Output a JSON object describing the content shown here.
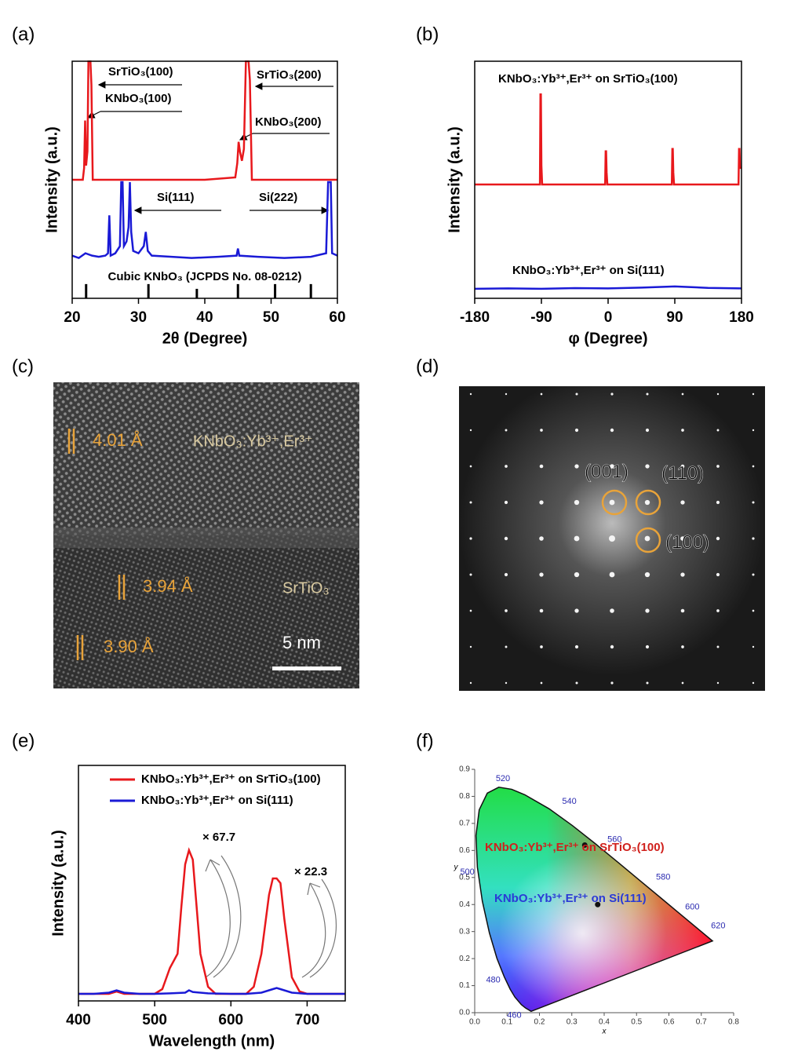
{
  "chart_data": [
    {
      "type": "line",
      "panel_label": "(a)",
      "x_label": "2θ (Degree)",
      "y_label": "Intensity (a.u.)",
      "xlim": [
        20,
        60
      ],
      "xticks": [
        20,
        30,
        40,
        50,
        60
      ],
      "ylim": [
        0,
        100
      ],
      "series": [
        {
          "color": "#e8181c",
          "x": [
            20,
            21.6,
            21.8,
            21.95,
            22.1,
            22.3,
            22.45,
            22.6,
            22.75,
            22.9,
            23.1,
            30,
            40,
            44.6,
            44.9,
            45.1,
            45.3,
            45.6,
            45.9,
            46.2,
            46.4,
            46.6,
            46.8,
            47.1,
            50,
            60
          ],
          "values": [
            50,
            50,
            55,
            75,
            56,
            62,
            100,
            100,
            100,
            90,
            50,
            50,
            50,
            51,
            57,
            66,
            62,
            58,
            63,
            100,
            100,
            100,
            92,
            50,
            50,
            50
          ]
        },
        {
          "color": "#1a1ad6",
          "x": [
            20,
            21,
            22,
            23,
            24,
            25,
            25.4,
            25.6,
            25.8,
            26.5,
            27.2,
            27.4,
            27.6,
            27.8,
            28.2,
            28.5,
            28.7,
            28.9,
            29.2,
            30,
            30.8,
            31.1,
            31.4,
            32,
            35,
            38,
            42,
            44.8,
            45,
            45.2,
            48,
            52,
            56,
            58.3,
            58.6,
            58.8,
            59,
            59.2,
            60
          ],
          "values": [
            18,
            17,
            19,
            18,
            17.5,
            18,
            19,
            35,
            18,
            19,
            22,
            49,
            49,
            22,
            24,
            30,
            49,
            28,
            20,
            19,
            22,
            28,
            20,
            18,
            17.5,
            17,
            17.5,
            18,
            21,
            18,
            17.5,
            17,
            17.5,
            19,
            49,
            49,
            49,
            19,
            18
          ]
        }
      ],
      "reference_peaks": {
        "label": "Cubic KNbO₃ (JCPDS No. 08-0212)",
        "x": [
          22.1,
          31.5,
          38.8,
          45.0,
          50.6,
          56.0
        ],
        "values": [
          6,
          6,
          4,
          6,
          6,
          6
        ]
      },
      "annotations": [
        "SrTiO₃(100)",
        "KNbO₃(100)",
        "SrTiO₃(200)",
        "KNbO₃(200)",
        "Si(111)",
        "Si(222)"
      ]
    },
    {
      "type": "line",
      "panel_label": "(b)",
      "x_label": "φ (Degree)",
      "y_label": "Intensity (a.u.)",
      "xlim": [
        -180,
        180
      ],
      "xticks": [
        -180,
        -90,
        0,
        90,
        180
      ],
      "ylim": [
        0,
        100
      ],
      "series": [
        {
          "name": "KNbO₃:Yb³⁺,Er³⁺ on SrTiO₃(100)",
          "color": "#e8181c",
          "x": [
            -180,
            -92,
            -91.3,
            -90.7,
            -90,
            -89,
            -4,
            -3.3,
            -2.7,
            -2,
            -1,
            86,
            86.7,
            87.3,
            88,
            89,
            176,
            176.7,
            177.3,
            178,
            180
          ],
          "values": [
            48,
            48,
            86,
            86,
            56,
            48,
            48,
            62,
            62,
            53,
            48,
            48,
            63,
            63,
            53,
            48,
            48,
            63,
            63,
            55,
            55
          ]
        },
        {
          "name": "KNbO₃:Yb³⁺,Er³⁺ on Si(111)",
          "color": "#1a1ad6",
          "x": [
            -180,
            -135,
            -90,
            -45,
            0,
            45,
            90,
            135,
            180
          ],
          "values": [
            4,
            4.2,
            4,
            4.3,
            4.2,
            4.5,
            5,
            4.4,
            4.2
          ]
        }
      ]
    },
    {
      "type": "line",
      "panel_label": "(e)",
      "x_label": "Wavelength (nm)",
      "y_label": "Intensity (a.u.)",
      "xlim": [
        400,
        750
      ],
      "xticks": [
        400,
        500,
        600,
        700
      ],
      "ylim": [
        0,
        100
      ],
      "legend": "top",
      "series": [
        {
          "name": "KNbO₃:Yb³⁺,Er³⁺ on SrTiO₃(100)",
          "color": "#e8181c",
          "x": [
            400,
            420,
            440,
            450,
            460,
            480,
            500,
            510,
            520,
            530,
            535,
            540,
            545,
            550,
            555,
            560,
            570,
            580,
            600,
            620,
            630,
            640,
            650,
            655,
            660,
            665,
            670,
            680,
            690,
            700,
            720,
            750
          ],
          "values": [
            3,
            3,
            3,
            4,
            3,
            3,
            3,
            5,
            14,
            20,
            40,
            58,
            64,
            60,
            40,
            20,
            6,
            3,
            3,
            3,
            6,
            20,
            45,
            52,
            52,
            50,
            35,
            10,
            4,
            3,
            3,
            3
          ]
        },
        {
          "name": "KNbO₃:Yb³⁺,Er³⁺ on Si(111)",
          "color": "#1a1ad6",
          "x": [
            400,
            420,
            440,
            450,
            460,
            480,
            500,
            520,
            540,
            545,
            550,
            570,
            600,
            620,
            640,
            655,
            660,
            665,
            680,
            700,
            720,
            750
          ],
          "values": [
            3,
            3,
            3.5,
            4.5,
            3.5,
            3,
            3,
            3.2,
            3.5,
            4.5,
            3.8,
            3.2,
            3,
            3,
            3.5,
            5,
            5.5,
            5,
            3.5,
            3,
            3,
            3
          ]
        }
      ],
      "annotations": [
        "× 67.7",
        "× 22.3"
      ]
    },
    {
      "type": "scatter",
      "panel_label": "(f)",
      "x_label": "x",
      "y_label": "y",
      "xlim": [
        0,
        0.8
      ],
      "xticks": [
        {
          "value": 0,
          "label": "0.0"
        },
        0.1,
        0.2,
        0.3,
        0.4,
        0.5,
        0.6,
        0.7,
        0.8
      ],
      "ylim": [
        0,
        0.9
      ],
      "yticks": [
        {
          "value": 0,
          "label": "0.0"
        },
        0.1,
        0.2,
        0.3,
        0.4,
        0.5,
        0.6,
        0.7,
        0.8,
        0.9
      ],
      "marker_color": "#111111",
      "series": [
        {
          "name": "KNbO₃:Yb³⁺,Er³⁺ on SrTiO₃(100)",
          "color": "#d0201c",
          "x": [
            0.34
          ],
          "values": [
            0.62
          ]
        },
        {
          "name": "KNbO₃:Yb³⁺,Er³⁺ on Si(111)",
          "color": "#2a3ad6",
          "x": [
            0.38
          ],
          "values": [
            0.4
          ]
        }
      ],
      "locus_labels": [
        "460",
        "480",
        "500",
        "520",
        "540",
        "560",
        "580",
        "600",
        "620"
      ]
    }
  ],
  "images": [
    {
      "panel_label": "(c)",
      "annotations": [
        "4.01 Å",
        "KNbO₃:Yb³⁺,Er³⁺",
        "3.94 Å",
        "SrTiO₃",
        "3.90 Å",
        "5 nm"
      ]
    },
    {
      "panel_label": "(d)",
      "annotations": [
        "(001)",
        "(110)",
        "(100)"
      ]
    }
  ]
}
